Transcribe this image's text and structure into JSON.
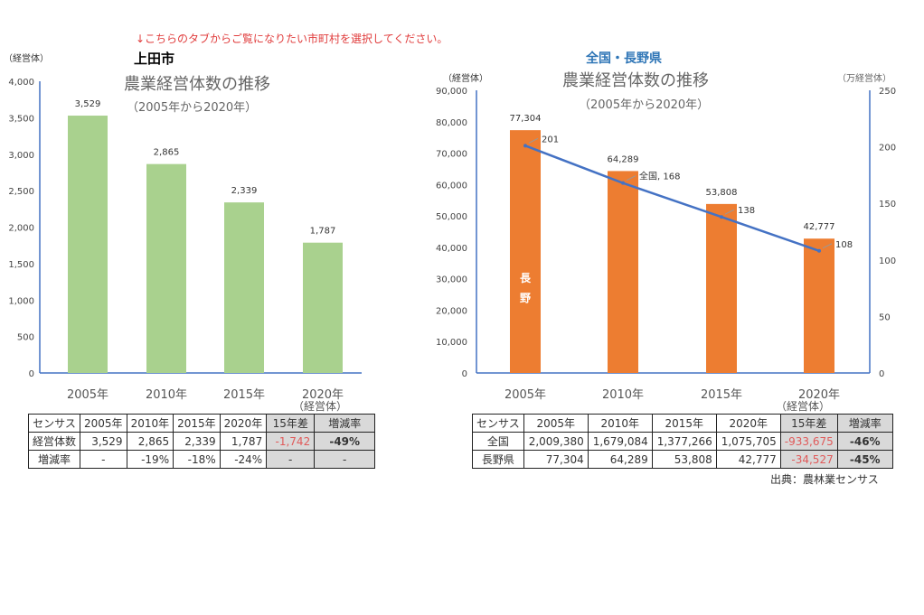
{
  "instruction": "↓こちらのタブからご覧になりたい市町村を選択してください。",
  "source": "出典：農林業センサス",
  "chart_data": [
    {
      "type": "bar",
      "heading": "上田市",
      "title": "農業経営体数の推移",
      "subtitle": "（2005年から2020年）",
      "ylabel": "（経営体）",
      "categories": [
        "2005年",
        "2010年",
        "2015年",
        "2020年"
      ],
      "values": [
        3529,
        2865,
        2339,
        1787
      ],
      "data_labels": [
        "3,529",
        "2,865",
        "2,339",
        "1,787"
      ],
      "ylim": [
        0,
        4000
      ],
      "yticks": [
        "0",
        "500",
        "1,000",
        "1,500",
        "2,000",
        "2,500",
        "3,000",
        "3,500",
        "4,000"
      ],
      "x_unit": "（経営体）",
      "color": "#a9d18e"
    },
    {
      "type": "bar+line",
      "heading": "全国・長野県",
      "title": "農業経営体数の推移",
      "subtitle": "（2005年から2020年）",
      "ylabel": "（経営体）",
      "y2label": "（万経営体）",
      "categories": [
        "2005年",
        "2010年",
        "2015年",
        "2020年"
      ],
      "x_unit": "（経営体）",
      "series": [
        {
          "name": "長野",
          "type": "bar",
          "axis": "left",
          "values": [
            77304,
            64289,
            53808,
            42777
          ],
          "data_labels": [
            "77,304",
            "64,289",
            "53,808",
            "42,777"
          ],
          "color": "#ed7d31"
        },
        {
          "name": "全国",
          "type": "line",
          "axis": "right",
          "values": [
            201,
            168,
            138,
            108
          ],
          "data_labels": [
            "201",
            "全国, 168",
            "138",
            "108"
          ],
          "color": "#4472c4"
        }
      ],
      "ylim": [
        0,
        90000
      ],
      "yticks": [
        "0",
        "10,000",
        "20,000",
        "30,000",
        "40,000",
        "50,000",
        "60,000",
        "70,000",
        "80,000",
        "90,000"
      ],
      "y2lim": [
        0,
        250
      ],
      "y2ticks": [
        "0",
        "50",
        "100",
        "150",
        "200",
        "250"
      ]
    }
  ],
  "table_left": {
    "header": [
      "センサス",
      "2005年",
      "2010年",
      "2015年",
      "2020年",
      "15年差",
      "増減率"
    ],
    "rows": [
      [
        "経営体数",
        "3,529",
        "2,865",
        "2,339",
        "1,787",
        "-1,742",
        "-49%"
      ],
      [
        "増減率",
        "-",
        "-19%",
        "-18%",
        "-24%",
        "-",
        "-"
      ]
    ]
  },
  "table_right": {
    "header": [
      "センサス",
      "2005年",
      "2010年",
      "2015年",
      "2020年",
      "15年差",
      "増減率"
    ],
    "rows": [
      [
        "全国",
        "2,009,380",
        "1,679,084",
        "1,377,266",
        "1,075,705",
        "-933,675",
        "-46%"
      ],
      [
        "長野県",
        "77,304",
        "64,289",
        "53,808",
        "42,777",
        "-34,527",
        "-45%"
      ]
    ]
  }
}
